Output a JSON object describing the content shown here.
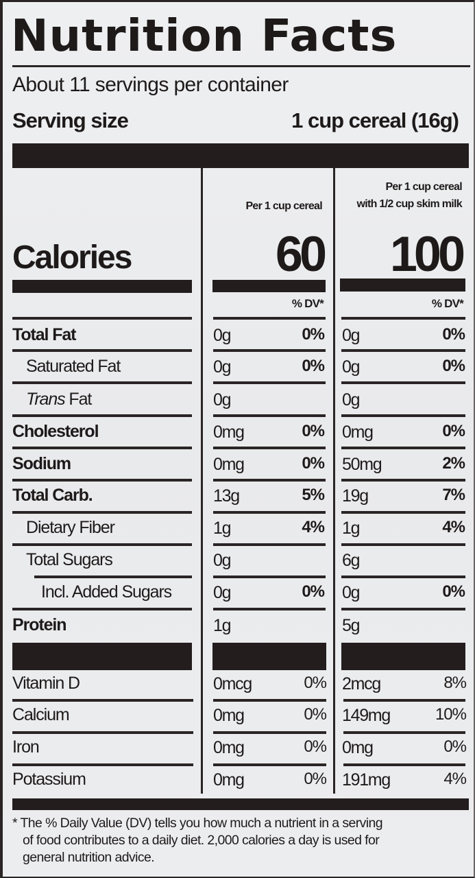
{
  "label": {
    "title": "Nutrition Facts",
    "servings_per_container": "About 11 servings per container",
    "serving_size_label": "Serving size",
    "serving_size_value": "1 cup cereal (16g)"
  },
  "columns": [
    {
      "header_line1": "",
      "header_line2": "Per 1 cup cereal",
      "calories": "60",
      "dv_header": "% DV*"
    },
    {
      "header_line1": "Per 1 cup cereal",
      "header_line2": "with 1/2 cup skim milk",
      "calories": "100",
      "dv_header": "% DV*"
    }
  ],
  "calories_label": "Calories",
  "nutrients": [
    {
      "label": "Total Fat",
      "style": "bold",
      "indent": 0,
      "col1_amount": "0g",
      "col1_dv": "0%",
      "col2_amount": "0g",
      "col2_dv": "0%"
    },
    {
      "label": "Saturated Fat",
      "style": "normal",
      "indent": 1,
      "col1_amount": "0g",
      "col1_dv": "0%",
      "col2_amount": "0g",
      "col2_dv": "0%"
    },
    {
      "label_italic": "Trans",
      "label": " Fat",
      "style": "normal",
      "indent": 1,
      "col1_amount": "0g",
      "col1_dv": "",
      "col2_amount": "0g",
      "col2_dv": ""
    },
    {
      "label": "Cholesterol",
      "style": "bold",
      "indent": 0,
      "col1_amount": "0mg",
      "col1_dv": "0%",
      "col2_amount": "0mg",
      "col2_dv": "0%"
    },
    {
      "label": "Sodium",
      "style": "bold",
      "indent": 0,
      "col1_amount": "0mg",
      "col1_dv": "0%",
      "col2_amount": "50mg",
      "col2_dv": "2%"
    },
    {
      "label": "Total Carb.",
      "style": "bold",
      "indent": 0,
      "col1_amount": "13g",
      "col1_dv": "5%",
      "col2_amount": "19g",
      "col2_dv": "7%"
    },
    {
      "label": "Dietary Fiber",
      "style": "normal",
      "indent": 1,
      "col1_amount": "1g",
      "col1_dv": "4%",
      "col2_amount": "1g",
      "col2_dv": "4%"
    },
    {
      "label": "Total Sugars",
      "style": "normal",
      "indent": 1,
      "col1_amount": "0g",
      "col1_dv": "",
      "col2_amount": "6g",
      "col2_dv": ""
    },
    {
      "label": "Incl. Added Sugars",
      "style": "normal",
      "indent": 2,
      "col1_amount": "0g",
      "col1_dv": "0%",
      "col2_amount": "0g",
      "col2_dv": "0%"
    },
    {
      "label": "Protein",
      "style": "bold",
      "indent": 0,
      "col1_amount": "1g",
      "col1_dv": "",
      "col2_amount": "5g",
      "col2_dv": ""
    }
  ],
  "vitamins": [
    {
      "label": "Vitamin D",
      "col1_amount": "0mcg",
      "col1_dv": "0%",
      "col2_amount": "2mcg",
      "col2_dv": "8%"
    },
    {
      "label": "Calcium",
      "col1_amount": "0mg",
      "col1_dv": "0%",
      "col2_amount": "149mg",
      "col2_dv": "10%"
    },
    {
      "label": "Iron",
      "col1_amount": "0mg",
      "col1_dv": "0%",
      "col2_amount": "0mg",
      "col2_dv": "0%"
    },
    {
      "label": "Potassium",
      "col1_amount": "0mg",
      "col1_dv": "0%",
      "col2_amount": "191mg",
      "col2_dv": "4%"
    }
  ],
  "footnote": {
    "line1": "* The % Daily Value (DV) tells you how much a nutrient in a serving",
    "line2": "of food contributes to a daily diet. 2,000 calories a day is used for",
    "line3": "general nutrition advice."
  }
}
